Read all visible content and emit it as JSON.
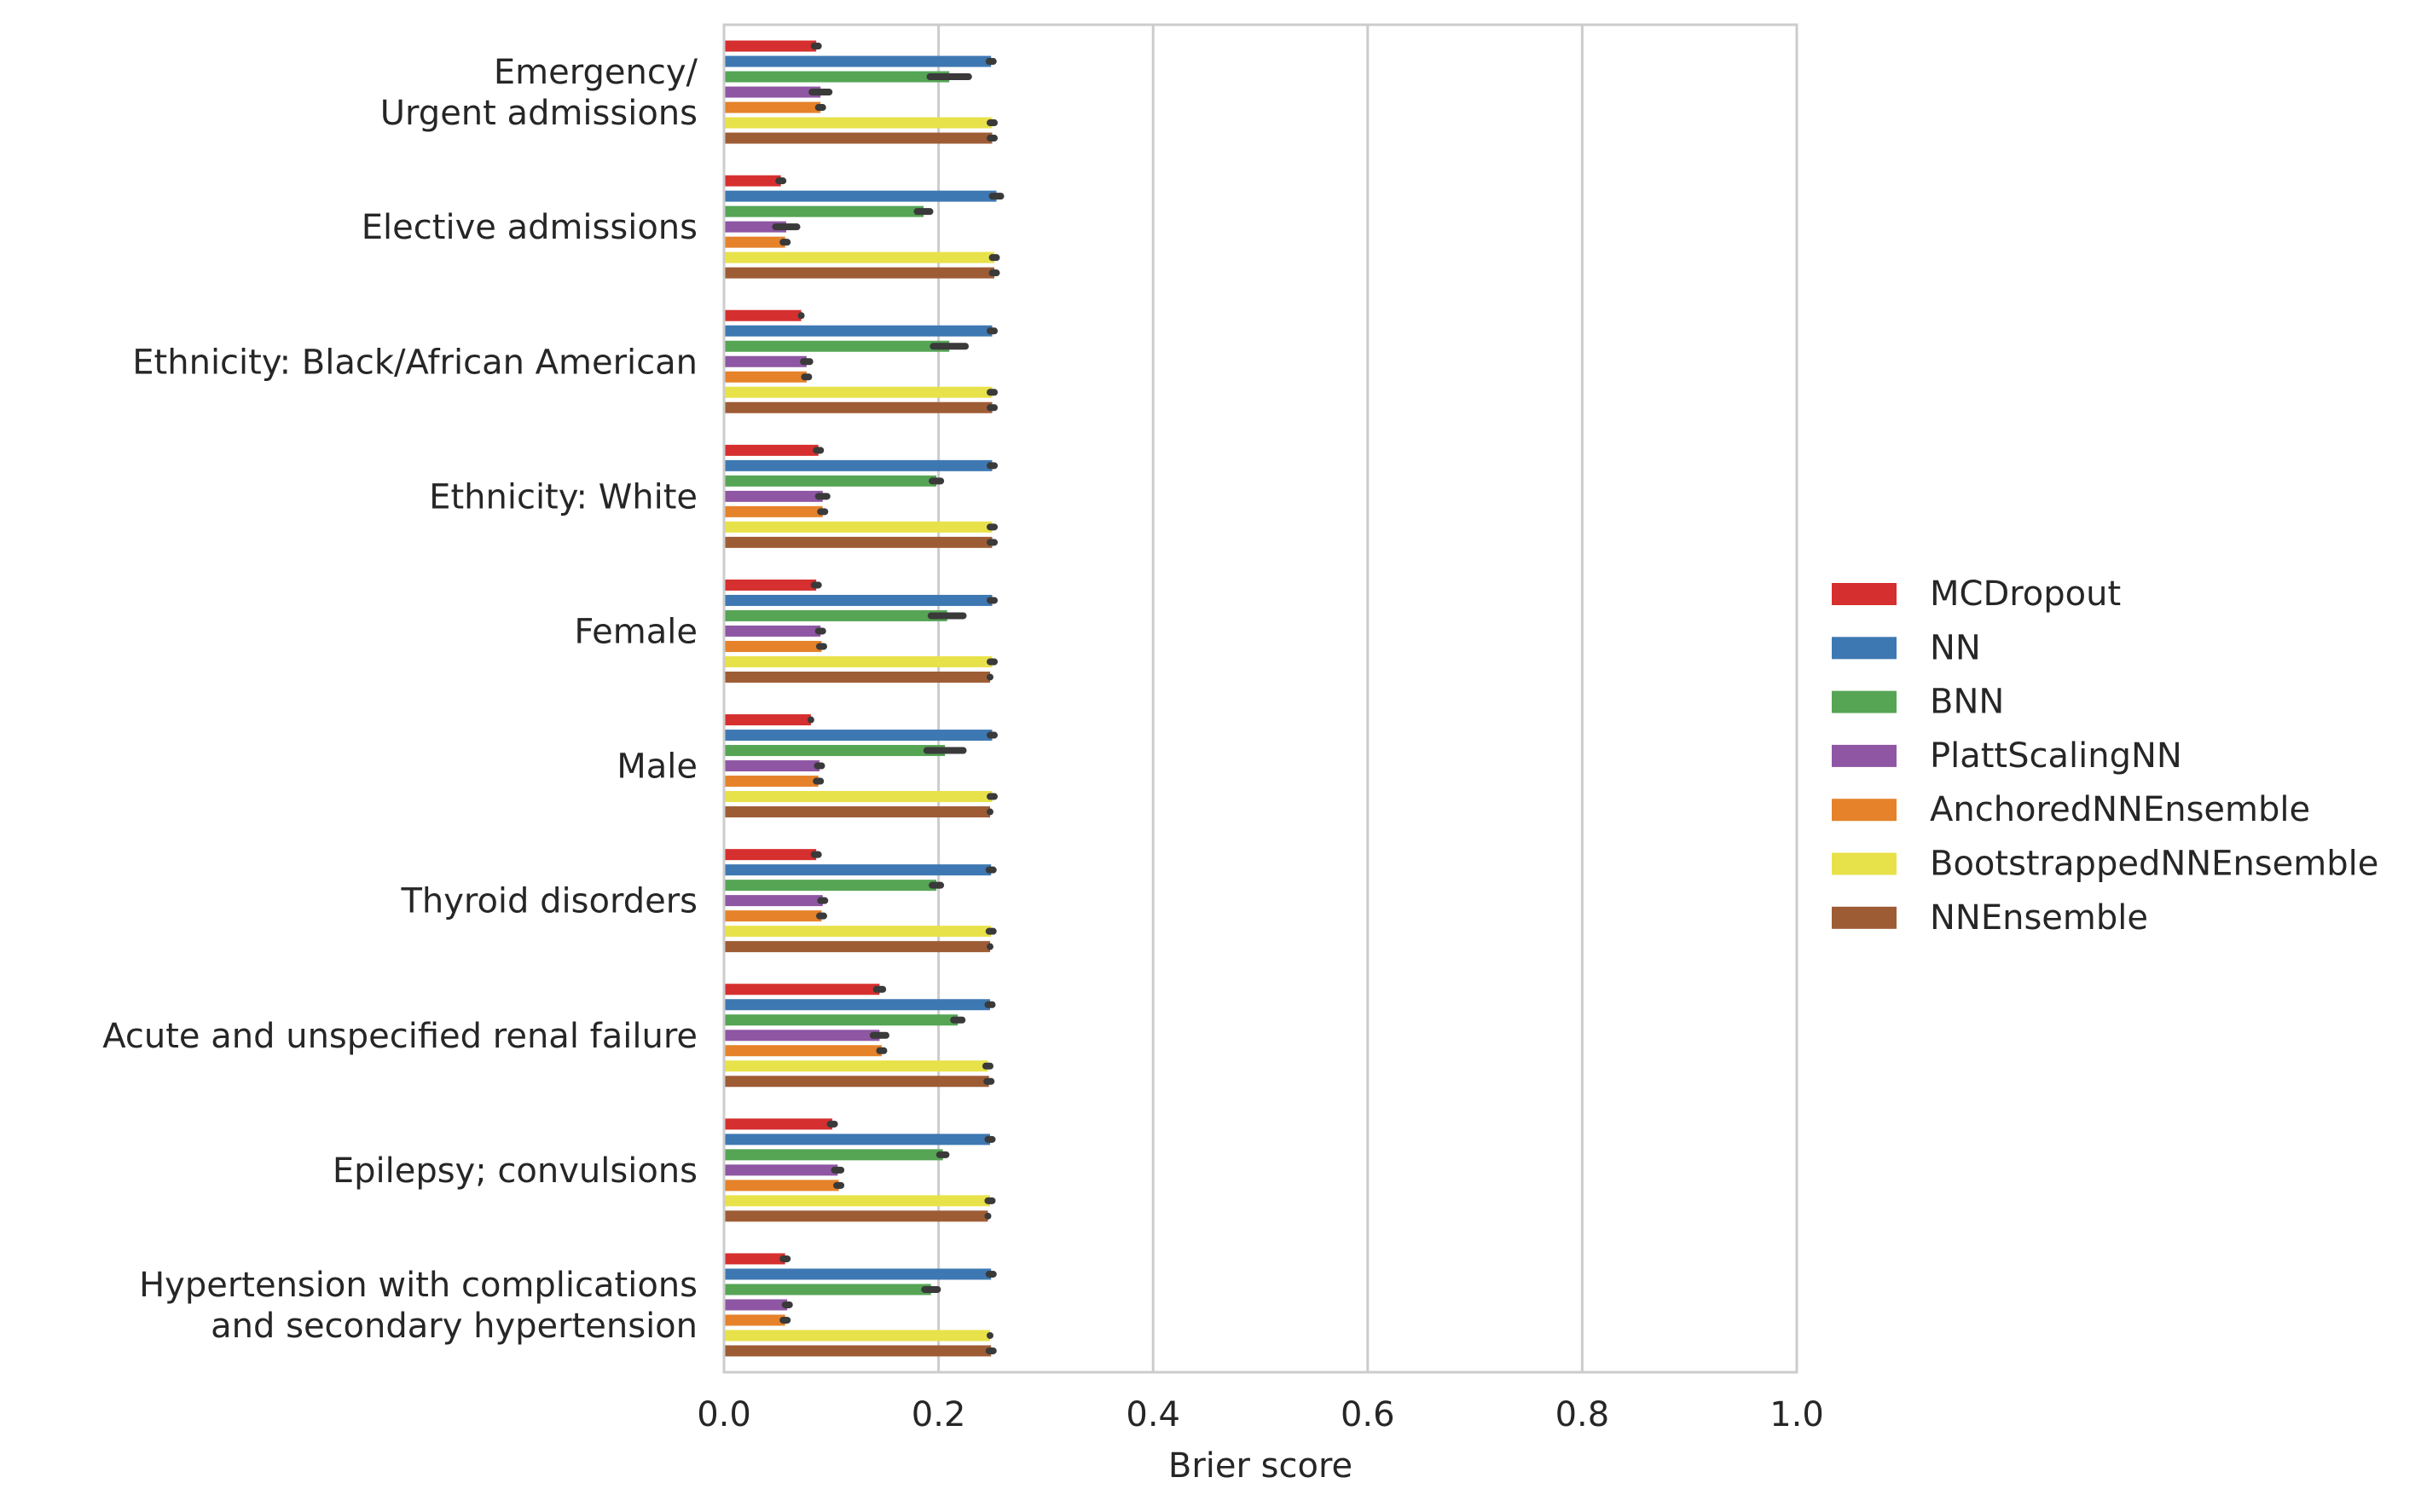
{
  "chart_data": {
    "type": "bar",
    "orientation": "horizontal",
    "title": "",
    "xlabel": "Brier score",
    "ylabel": "",
    "xlim": [
      0.0,
      1.0
    ],
    "xticks": [
      0.0,
      0.2,
      0.4,
      0.6,
      0.8,
      1.0
    ],
    "xtick_labels": [
      "0.0",
      "0.2",
      "0.4",
      "0.6",
      "0.8",
      "1.0"
    ],
    "grid": "vertical",
    "legend_position": "right",
    "categories": [
      [
        "Emergency/",
        "Urgent admissions"
      ],
      [
        "Elective admissions"
      ],
      [
        "Ethnicity: Black/African American"
      ],
      [
        "Ethnicity: White"
      ],
      [
        "Female"
      ],
      [
        "Male"
      ],
      [
        "Thyroid disorders"
      ],
      [
        "Acute and unspecified renal failure"
      ],
      [
        "Epilepsy; convulsions"
      ],
      [
        "Hypertension with complications",
        "and secondary hypertension"
      ]
    ],
    "series": [
      {
        "name": "MCDropout",
        "color": "#d62f2f",
        "values": [
          0.086,
          0.053,
          0.072,
          0.088,
          0.086,
          0.081,
          0.086,
          0.145,
          0.101,
          0.057
        ],
        "err": [
          0.002,
          0.002,
          0.0,
          0.002,
          0.002,
          0.0,
          0.002,
          0.003,
          0.002,
          0.002
        ]
      },
      {
        "name": "NN",
        "color": "#3e78b2",
        "values": [
          0.249,
          0.254,
          0.25,
          0.25,
          0.25,
          0.25,
          0.249,
          0.248,
          0.248,
          0.249
        ],
        "err": [
          0.002,
          0.004,
          0.002,
          0.002,
          0.002,
          0.002,
          0.002,
          0.002,
          0.002,
          0.002
        ]
      },
      {
        "name": "BNN",
        "color": "#55a555",
        "values": [
          0.21,
          0.186,
          0.21,
          0.198,
          0.208,
          0.206,
          0.198,
          0.218,
          0.204,
          0.193
        ],
        "err": [
          0.018,
          0.006,
          0.015,
          0.004,
          0.015,
          0.017,
          0.004,
          0.004,
          0.003,
          0.006
        ]
      },
      {
        "name": "PlattScalingNN",
        "color": "#8e56a3",
        "values": [
          0.09,
          0.058,
          0.077,
          0.092,
          0.09,
          0.089,
          0.092,
          0.145,
          0.106,
          0.059
        ],
        "err": [
          0.008,
          0.01,
          0.003,
          0.004,
          0.002,
          0.002,
          0.002,
          0.006,
          0.003,
          0.002
        ]
      },
      {
        "name": "AnchoredNNEnsemble",
        "color": "#e5822a",
        "values": [
          0.09,
          0.057,
          0.077,
          0.092,
          0.091,
          0.088,
          0.091,
          0.147,
          0.107,
          0.057
        ],
        "err": [
          0.002,
          0.002,
          0.002,
          0.002,
          0.002,
          0.002,
          0.002,
          0.002,
          0.002,
          0.002
        ]
      },
      {
        "name": "BootstrappedNNEnsemble",
        "color": "#e8e24a",
        "values": [
          0.25,
          0.252,
          0.25,
          0.25,
          0.25,
          0.25,
          0.249,
          0.246,
          0.248,
          0.248
        ],
        "err": [
          0.002,
          0.002,
          0.002,
          0.002,
          0.002,
          0.002,
          0.002,
          0.002,
          0.002,
          0.0
        ]
      },
      {
        "name": "NNEnsemble",
        "color": "#9e5c35",
        "values": [
          0.25,
          0.252,
          0.25,
          0.25,
          0.248,
          0.248,
          0.248,
          0.247,
          0.246,
          0.249
        ],
        "err": [
          0.002,
          0.002,
          0.002,
          0.002,
          0.0,
          0.0,
          0.0,
          0.002,
          0.0,
          0.002
        ]
      }
    ]
  }
}
